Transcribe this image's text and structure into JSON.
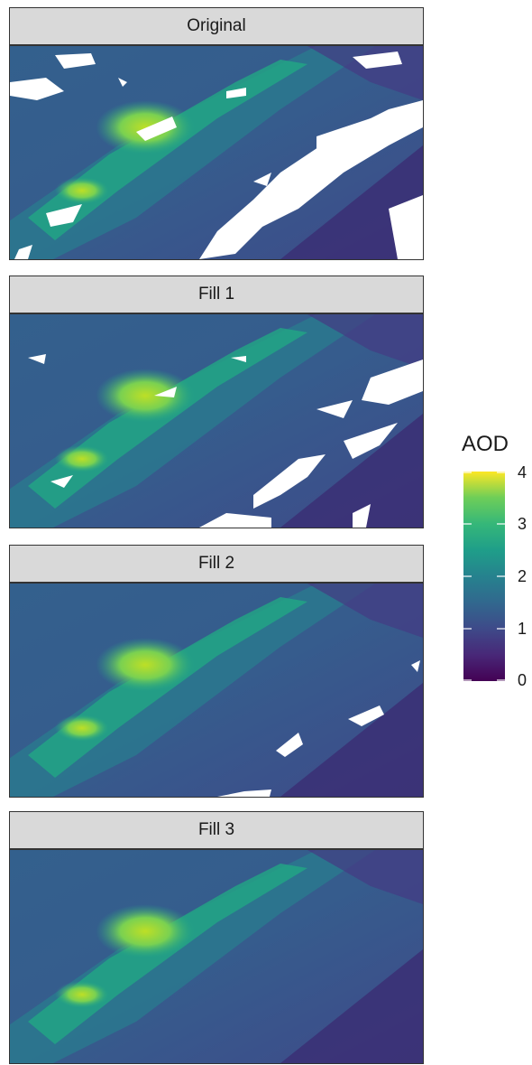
{
  "chart_data": {
    "type": "heatmap",
    "facets": [
      "Original",
      "Fill 1",
      "Fill 2",
      "Fill 3"
    ],
    "colorbar": {
      "title": "AOD",
      "range": [
        0,
        4
      ],
      "ticks": [
        0,
        1,
        2,
        3,
        4
      ],
      "colormap": "viridis",
      "missing_color": "#ffffff"
    },
    "missing_fraction_estimate": {
      "Original": 0.22,
      "Fill 1": 0.09,
      "Fill 2": 0.03,
      "Fill 3": 0.0
    }
  },
  "strip_background": "#d9d9d9",
  "panel_border": "#333333"
}
